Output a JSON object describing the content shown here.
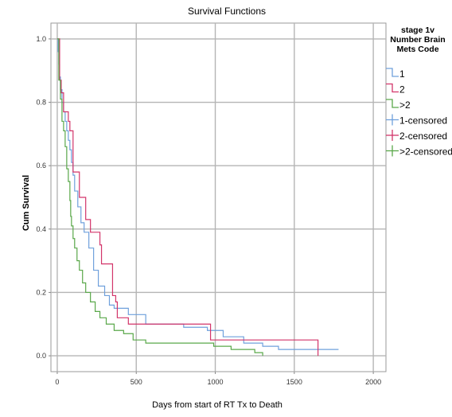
{
  "chart_data": {
    "type": "line",
    "title": "Survival Functions",
    "xlabel": "Days from start of RT Tx to Death",
    "ylabel": "Cum Survival",
    "xlim": [
      -40,
      2080
    ],
    "ylim": [
      -0.05,
      1.05
    ],
    "xticks": [
      0,
      500,
      1000,
      1500,
      2000
    ],
    "xtick_labels": [
      "0",
      "500",
      "1000",
      "1500",
      "2000"
    ],
    "yticks": [
      0.0,
      0.2,
      0.4,
      0.6,
      0.8,
      1.0
    ],
    "ytick_labels": [
      "0.0",
      "0.2",
      "0.4",
      "0.6",
      "0.8",
      "1.0"
    ],
    "grid": true,
    "legend_position": "right",
    "legend_title": [
      "stage 1v",
      "Number Brain",
      "Mets Code"
    ],
    "legend_entries": [
      {
        "label": "1",
        "series": "1",
        "kind": "line"
      },
      {
        "label": "2",
        "series": "2",
        "kind": "line"
      },
      {
        "label": ">2",
        "series": ">2",
        "kind": "line"
      },
      {
        "label": "1-censored",
        "series": "1",
        "kind": "censor"
      },
      {
        "label": "2-censored",
        "series": "2",
        "kind": "censor"
      },
      {
        "label": ">2-censored",
        "series": ">2",
        "kind": "censor"
      }
    ],
    "series": [
      {
        "name": "1",
        "color": "#6fa0dc",
        "points": [
          [
            0,
            1.0
          ],
          [
            5,
            0.96
          ],
          [
            10,
            0.92
          ],
          [
            15,
            0.88
          ],
          [
            20,
            0.84
          ],
          [
            30,
            0.8
          ],
          [
            40,
            0.77
          ],
          [
            50,
            0.74
          ],
          [
            60,
            0.71
          ],
          [
            70,
            0.68
          ],
          [
            80,
            0.65
          ],
          [
            90,
            0.61
          ],
          [
            100,
            0.57
          ],
          [
            110,
            0.52
          ],
          [
            130,
            0.47
          ],
          [
            150,
            0.42
          ],
          [
            170,
            0.39
          ],
          [
            200,
            0.34
          ],
          [
            230,
            0.27
          ],
          [
            260,
            0.22
          ],
          [
            300,
            0.19
          ],
          [
            330,
            0.16
          ],
          [
            360,
            0.15
          ],
          [
            450,
            0.13
          ],
          [
            560,
            0.1
          ],
          [
            800,
            0.09
          ],
          [
            950,
            0.08
          ],
          [
            1050,
            0.06
          ],
          [
            1180,
            0.04
          ],
          [
            1300,
            0.03
          ],
          [
            1400,
            0.02
          ],
          [
            1780,
            0.02
          ]
        ]
      },
      {
        "name": "2",
        "color": "#d3356a",
        "points": [
          [
            0,
            1.0
          ],
          [
            15,
            0.87
          ],
          [
            25,
            0.83
          ],
          [
            40,
            0.77
          ],
          [
            65,
            0.77
          ],
          [
            70,
            0.74
          ],
          [
            80,
            0.71
          ],
          [
            100,
            0.58
          ],
          [
            130,
            0.58
          ],
          [
            140,
            0.5
          ],
          [
            180,
            0.43
          ],
          [
            210,
            0.39
          ],
          [
            270,
            0.35
          ],
          [
            280,
            0.29
          ],
          [
            350,
            0.19
          ],
          [
            370,
            0.17
          ],
          [
            380,
            0.12
          ],
          [
            450,
            0.1
          ],
          [
            970,
            0.1
          ],
          [
            970,
            0.05
          ],
          [
            1650,
            0.05
          ],
          [
            1650,
            0.0
          ]
        ]
      },
      {
        "name": ">2",
        "color": "#5aa84a",
        "points": [
          [
            0,
            1.0
          ],
          [
            10,
            0.87
          ],
          [
            20,
            0.81
          ],
          [
            30,
            0.74
          ],
          [
            40,
            0.71
          ],
          [
            50,
            0.66
          ],
          [
            60,
            0.59
          ],
          [
            70,
            0.55
          ],
          [
            80,
            0.49
          ],
          [
            85,
            0.44
          ],
          [
            90,
            0.41
          ],
          [
            100,
            0.37
          ],
          [
            110,
            0.34
          ],
          [
            125,
            0.3
          ],
          [
            140,
            0.27
          ],
          [
            160,
            0.23
          ],
          [
            180,
            0.2
          ],
          [
            210,
            0.17
          ],
          [
            240,
            0.14
          ],
          [
            270,
            0.12
          ],
          [
            310,
            0.1
          ],
          [
            360,
            0.08
          ],
          [
            420,
            0.07
          ],
          [
            480,
            0.05
          ],
          [
            560,
            0.04
          ],
          [
            800,
            0.04
          ],
          [
            990,
            0.03
          ],
          [
            1100,
            0.02
          ],
          [
            1250,
            0.01
          ],
          [
            1300,
            0.0
          ]
        ]
      }
    ]
  }
}
